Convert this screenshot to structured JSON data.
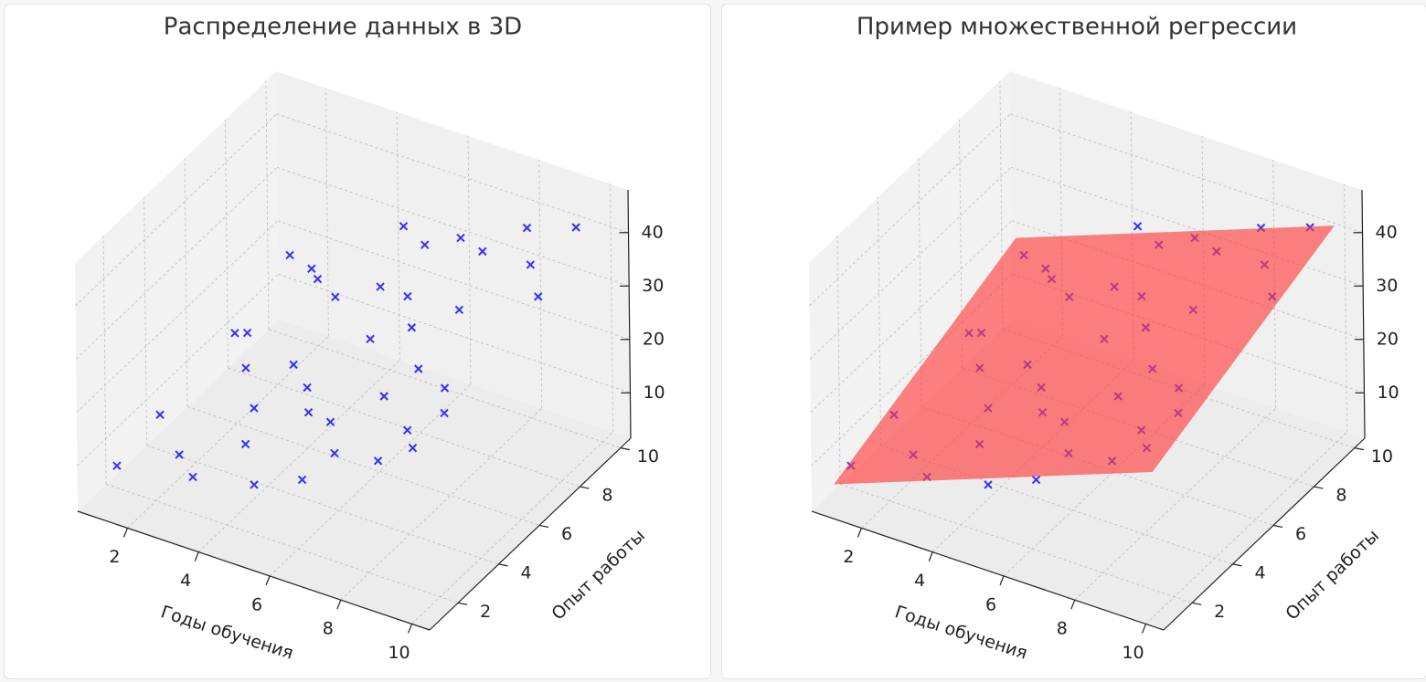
{
  "chart_data": [
    {
      "type": "scatter3d",
      "title": "Распределение данных в 3D",
      "x_label": "Годы обучения",
      "y_label": "Опыт работы",
      "color": "#0000ff",
      "marker": "x",
      "grid": true,
      "xlim": [
        0.6,
        10.5
      ],
      "ylim": [
        0.6,
        10.5
      ],
      "zlim": [
        1.5,
        48
      ],
      "xticks": [
        2,
        4,
        6,
        8,
        10
      ],
      "yticks": [
        2,
        4,
        6,
        8,
        10
      ],
      "zticks": [
        10,
        20,
        30,
        40
      ],
      "x": [
        1.2,
        2.5,
        3.1,
        4.8,
        5.5,
        6.2,
        7.9,
        8.4,
        9.6,
        2.2,
        3.7,
        5.1,
        6.6,
        7.3,
        8.8,
        9.9,
        1.8,
        4.2,
        5.9,
        7.0,
        8.1,
        9.3,
        2.9,
        3.4,
        6.1,
        7.6,
        9.0,
        1.5,
        4.5,
        5.3,
        6.9,
        8.6,
        2.7,
        3.9,
        5.7,
        7.2,
        9.5,
        1.1,
        4.0,
        6.4
      ],
      "y": [
        1.5,
        2.3,
        8.1,
        4.6,
        9.2,
        3.3,
        6.7,
        1.8,
        9.5,
        6.2,
        3.9,
        7.7,
        1.2,
        8.9,
        4.4,
        7.1,
        9.0,
        2.6,
        5.8,
        2.1,
        9.7,
        3.5,
        4.9,
        1.4,
        7.3,
        5.2,
        8.3,
        6.8,
        9.9,
        1.1,
        6.1,
        2.9,
        8.5,
        5.5,
        3.1,
        4.2,
        1.6,
        3.8,
        7.4,
        9.4
      ],
      "z": [
        8.1,
        10.2,
        23.4,
        19.6,
        31.2,
        21.0,
        33.5,
        24.1,
        42.6,
        18.2,
        15.8,
        27.9,
        18.7,
        35.1,
        29.2,
        39.0,
        21.7,
        14.9,
        26.8,
        21.3,
        38.4,
        28.9,
        17.9,
        11.3,
        29.8,
        27.2,
        38.6,
        14.4,
        29.9,
        15.2,
        30.1,
        26.3,
        23.0,
        18.6,
        22.4,
        24.8,
        29.7,
        9.1,
        24.6,
        33.8
      ]
    },
    {
      "type": "scatter3d",
      "title": "Пример множественной регрессии",
      "x_label": "Годы обучения",
      "y_label": "Опыт работы",
      "color": "#0000ff",
      "marker": "x",
      "grid": true,
      "xlim": [
        0.6,
        10.5
      ],
      "ylim": [
        0.6,
        10.5
      ],
      "zlim": [
        1.5,
        48
      ],
      "xticks": [
        2,
        4,
        6,
        8,
        10
      ],
      "yticks": [
        2,
        4,
        6,
        8,
        10
      ],
      "zticks": [
        10,
        20,
        30,
        40
      ],
      "x": [
        1.2,
        2.5,
        3.1,
        4.8,
        5.5,
        6.2,
        7.9,
        8.4,
        9.6,
        2.2,
        3.7,
        5.1,
        6.6,
        7.3,
        8.8,
        9.9,
        1.8,
        4.2,
        5.9,
        7.0,
        8.1,
        9.3,
        2.9,
        3.4,
        6.1,
        7.6,
        9.0,
        1.5,
        4.5,
        5.3,
        6.9,
        8.6,
        2.7,
        3.9,
        5.7,
        7.2,
        9.5,
        1.1,
        4.0,
        6.4
      ],
      "y": [
        1.5,
        2.3,
        8.1,
        4.6,
        9.2,
        3.3,
        6.7,
        1.8,
        9.5,
        6.2,
        3.9,
        7.7,
        1.2,
        8.9,
        4.4,
        7.1,
        9.0,
        2.6,
        5.8,
        2.1,
        9.7,
        3.5,
        4.9,
        1.4,
        7.3,
        5.2,
        8.3,
        6.8,
        9.9,
        1.1,
        6.1,
        2.9,
        8.5,
        5.5,
        3.1,
        4.2,
        1.6,
        3.8,
        7.4,
        9.4
      ],
      "z": [
        8.1,
        10.2,
        23.4,
        19.6,
        31.2,
        21.0,
        33.5,
        24.1,
        42.6,
        18.2,
        15.8,
        27.9,
        18.7,
        35.1,
        29.2,
        39.0,
        21.7,
        14.9,
        26.8,
        21.3,
        38.4,
        28.9,
        17.9,
        11.3,
        29.8,
        27.2,
        38.6,
        14.4,
        29.9,
        15.2,
        30.1,
        26.3,
        23.0,
        18.6,
        22.4,
        24.8,
        29.7,
        9.1,
        24.6,
        33.8
      ],
      "surface": {
        "color": "#ff4040",
        "x": [
          1,
          10
        ],
        "y": [
          1,
          10
        ],
        "z": [
          [
            6,
            19.5
          ],
          [
            28.5,
            42
          ]
        ]
      }
    }
  ]
}
